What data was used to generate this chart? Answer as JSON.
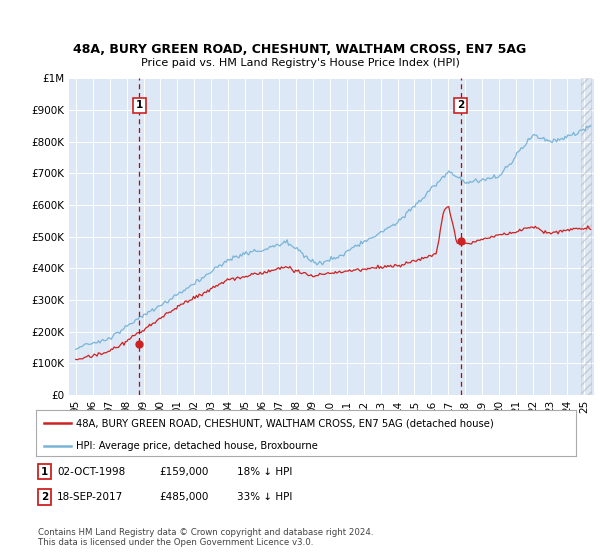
{
  "title1": "48A, BURY GREEN ROAD, CHESHUNT, WALTHAM CROSS, EN7 5AG",
  "title2": "Price paid vs. HM Land Registry's House Price Index (HPI)",
  "ylim": [
    0,
    1000000
  ],
  "yticks": [
    0,
    100000,
    200000,
    300000,
    400000,
    500000,
    600000,
    700000,
    800000,
    900000,
    1000000
  ],
  "ytick_labels": [
    "£0",
    "£100K",
    "£200K",
    "£300K",
    "£400K",
    "£500K",
    "£600K",
    "£700K",
    "£800K",
    "£900K",
    "£1M"
  ],
  "sale1_date": 1998.75,
  "sale1_price": 159000,
  "sale1_label": "1",
  "sale2_date": 2017.72,
  "sale2_price": 485000,
  "sale2_label": "2",
  "hpi_color": "#7ab4d8",
  "price_color": "#cc2222",
  "background_color": "#dce8f5",
  "legend_label1": "48A, BURY GREEN ROAD, CHESHUNT, WALTHAM CROSS, EN7 5AG (detached house)",
  "legend_label2": "HPI: Average price, detached house, Broxbourne",
  "table_row1": [
    "1",
    "02-OCT-1998",
    "£159,000",
    "18% ↓ HPI"
  ],
  "table_row2": [
    "2",
    "18-SEP-2017",
    "£485,000",
    "33% ↓ HPI"
  ],
  "footnote": "Contains HM Land Registry data © Crown copyright and database right 2024.\nThis data is licensed under the Open Government Licence v3.0."
}
